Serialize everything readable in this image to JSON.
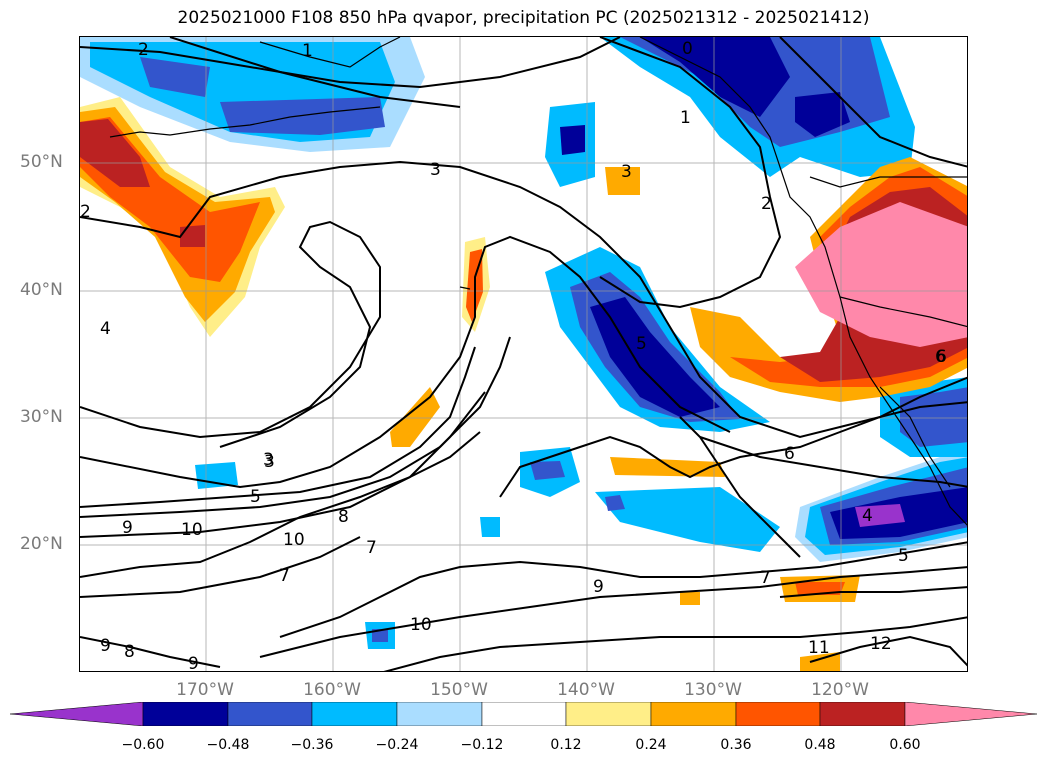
{
  "title": "2025021000 F108 850 hPa qvapor, precipitation PC (2025021312 - 2025021412)",
  "lat_labels": [
    "50°N",
    "40°N",
    "30°N",
    "20°N"
  ],
  "lon_labels": [
    "170°W",
    "160°W",
    "150°W",
    "140°W",
    "130°W",
    "120°W"
  ],
  "contour_labels": [
    "2",
    "1",
    "0",
    "1",
    "3",
    "3",
    "2",
    "2",
    "3",
    "4",
    "5",
    "6",
    "6",
    "3",
    "5",
    "9",
    "10",
    "8",
    "7",
    "10",
    "7",
    "9",
    "7",
    "4",
    "5",
    "6",
    "9",
    "8",
    "9",
    "10",
    "11",
    "12"
  ],
  "colorbar": {
    "ticks": [
      "−0.60",
      "−0.48",
      "−0.36",
      "−0.24",
      "−0.12",
      "0.12",
      "0.24",
      "0.36",
      "0.48",
      "0.60"
    ],
    "colors": [
      "#9933cc",
      "#000099",
      "#3355cc",
      "#00bbff",
      "#aaddff",
      "#ffffff",
      "#ffee88",
      "#ffaa00",
      "#ff5500",
      "#bb2222",
      "#ff88aa"
    ]
  },
  "palette": {
    "neg_extreme": "#9933cc",
    "neg_strong": "#000099",
    "neg_mid": "#3355cc",
    "neg_light": "#00bbff",
    "neg_faint": "#aaddff",
    "pos_faint": "#ffee88",
    "pos_light": "#ffaa00",
    "pos_mid": "#ff5500",
    "pos_strong": "#bb2222",
    "pos_extreme": "#ff88aa"
  }
}
